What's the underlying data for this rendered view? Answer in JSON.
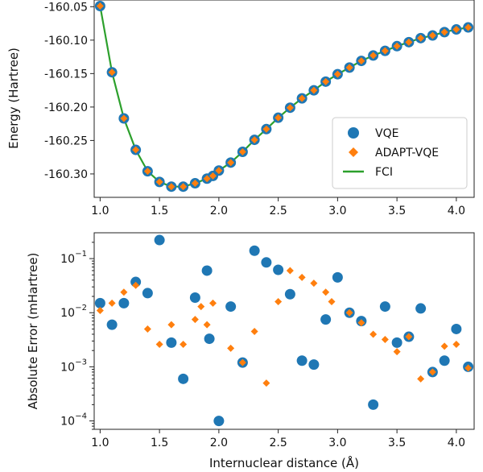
{
  "chart_data": [
    {
      "type": "line",
      "title": "",
      "xlabel": "",
      "ylabel": "Energy (Hartree)",
      "xlim": [
        0.95,
        4.15
      ],
      "ylim": [
        -160.335,
        -160.04
      ],
      "xticks": [
        "1.0",
        "1.5",
        "2.0",
        "2.5",
        "3.0",
        "3.5",
        "4.0"
      ],
      "yticks": [
        "-160.05",
        "-160.10",
        "-160.15",
        "-160.20",
        "-160.25",
        "-160.30"
      ],
      "xtick_values": [
        1.0,
        1.5,
        2.0,
        2.5,
        3.0,
        3.5,
        4.0
      ],
      "ytick_values": [
        -160.05,
        -160.1,
        -160.15,
        -160.2,
        -160.25,
        -160.3
      ],
      "legend_position": "lower-right",
      "x": [
        1.0,
        1.1,
        1.2,
        1.3,
        1.4,
        1.5,
        1.6,
        1.7,
        1.8,
        1.9,
        1.95,
        2.0,
        2.1,
        2.2,
        2.3,
        2.4,
        2.5,
        2.6,
        2.7,
        2.8,
        2.9,
        3.0,
        3.1,
        3.2,
        3.3,
        3.4,
        3.5,
        3.6,
        3.7,
        3.8,
        3.9,
        4.0,
        4.1
      ],
      "series": [
        {
          "name": "VQE",
          "marker": "circle",
          "color": "#1f77b4",
          "values": [
            -160.049,
            -160.148,
            -160.217,
            -160.264,
            -160.296,
            -160.312,
            -160.319,
            -160.319,
            -160.314,
            -160.307,
            -160.303,
            -160.295,
            -160.283,
            -160.267,
            -160.249,
            -160.233,
            -160.216,
            -160.201,
            -160.187,
            -160.175,
            -160.162,
            -160.151,
            -160.141,
            -160.131,
            -160.123,
            -160.116,
            -160.109,
            -160.103,
            -160.097,
            -160.093,
            -160.088,
            -160.084,
            -160.081
          ]
        },
        {
          "name": "ADAPT-VQE",
          "marker": "diamond",
          "color": "#ff7f0e",
          "values": [
            -160.049,
            -160.148,
            -160.217,
            -160.264,
            -160.296,
            -160.312,
            -160.319,
            -160.319,
            -160.314,
            -160.307,
            -160.303,
            -160.295,
            -160.283,
            -160.267,
            -160.249,
            -160.233,
            -160.216,
            -160.201,
            -160.187,
            -160.175,
            -160.162,
            -160.151,
            -160.141,
            -160.131,
            -160.123,
            -160.116,
            -160.109,
            -160.103,
            -160.097,
            -160.093,
            -160.088,
            -160.084,
            -160.081
          ]
        },
        {
          "name": "FCI",
          "marker": "line",
          "color": "#2ca02c",
          "values": [
            -160.049,
            -160.148,
            -160.217,
            -160.264,
            -160.296,
            -160.312,
            -160.319,
            -160.319,
            -160.314,
            -160.307,
            -160.303,
            -160.295,
            -160.283,
            -160.267,
            -160.249,
            -160.233,
            -160.216,
            -160.201,
            -160.187,
            -160.175,
            -160.162,
            -160.151,
            -160.141,
            -160.131,
            -160.123,
            -160.116,
            -160.109,
            -160.103,
            -160.097,
            -160.093,
            -160.088,
            -160.084,
            -160.081
          ]
        }
      ]
    },
    {
      "type": "scatter",
      "title": "",
      "xlabel": "Internuclear distance (Å)",
      "ylabel": "Absolute Error (mHartree)",
      "log_y": true,
      "xlim": [
        0.95,
        4.15
      ],
      "ylim": [
        7e-05,
        0.3
      ],
      "xticks": [
        "1.0",
        "1.5",
        "2.0",
        "2.5",
        "3.0",
        "3.5",
        "4.0"
      ],
      "xtick_values": [
        1.0,
        1.5,
        2.0,
        2.5,
        3.0,
        3.5,
        4.0
      ],
      "yticks": [
        {
          "base": "10",
          "exp": "−1",
          "value": 0.1
        },
        {
          "base": "10",
          "exp": "−2",
          "value": 0.01
        },
        {
          "base": "10",
          "exp": "−3",
          "value": 0.001
        },
        {
          "base": "10",
          "exp": "−4",
          "value": 0.0001
        }
      ],
      "series": [
        {
          "name": "VQE",
          "marker": "circle",
          "color": "#1f77b4",
          "points": [
            [
              1.0,
              0.015
            ],
            [
              1.1,
              0.006
            ],
            [
              1.2,
              0.015
            ],
            [
              1.3,
              0.037
            ],
            [
              1.4,
              0.023
            ],
            [
              1.5,
              0.22
            ],
            [
              1.6,
              0.0028
            ],
            [
              1.7,
              0.0006
            ],
            [
              1.8,
              0.019
            ],
            [
              1.9,
              0.06
            ],
            [
              1.92,
              0.0033
            ],
            [
              2.0,
              0.0001
            ],
            [
              2.1,
              0.013
            ],
            [
              2.2,
              0.0012
            ],
            [
              2.3,
              0.14
            ],
            [
              2.4,
              0.085
            ],
            [
              2.5,
              0.062
            ],
            [
              2.6,
              0.022
            ],
            [
              2.7,
              0.0013
            ],
            [
              2.8,
              0.0011
            ],
            [
              2.9,
              0.0075
            ],
            [
              3.0,
              0.045
            ],
            [
              3.1,
              0.01
            ],
            [
              3.2,
              0.007
            ],
            [
              3.3,
              0.0002
            ],
            [
              3.4,
              0.013
            ],
            [
              3.5,
              0.0028
            ],
            [
              3.6,
              0.0036
            ],
            [
              3.7,
              0.012
            ],
            [
              3.8,
              0.0008
            ],
            [
              3.9,
              0.0013
            ],
            [
              4.0,
              0.005
            ],
            [
              4.1,
              0.001
            ]
          ]
        },
        {
          "name": "ADAPT-VQE",
          "marker": "diamond",
          "color": "#ff7f0e",
          "points": [
            [
              1.0,
              0.011
            ],
            [
              1.1,
              0.015
            ],
            [
              1.2,
              0.024
            ],
            [
              1.3,
              0.032
            ],
            [
              1.4,
              0.005
            ],
            [
              1.5,
              0.0026
            ],
            [
              1.6,
              0.006
            ],
            [
              1.7,
              0.0026
            ],
            [
              1.8,
              0.0075
            ],
            [
              1.85,
              0.013
            ],
            [
              1.9,
              0.006
            ],
            [
              1.95,
              0.015
            ],
            [
              2.1,
              0.0022
            ],
            [
              2.2,
              0.0012
            ],
            [
              2.3,
              0.0045
            ],
            [
              2.4,
              0.0005
            ],
            [
              2.5,
              0.016
            ],
            [
              2.6,
              0.06
            ],
            [
              2.7,
              0.045
            ],
            [
              2.8,
              0.035
            ],
            [
              2.9,
              0.024
            ],
            [
              2.95,
              0.016
            ],
            [
              3.1,
              0.01
            ],
            [
              3.2,
              0.0065
            ],
            [
              3.3,
              0.004
            ],
            [
              3.4,
              0.0032
            ],
            [
              3.5,
              0.0019
            ],
            [
              3.6,
              0.0036
            ],
            [
              3.7,
              0.0006
            ],
            [
              3.8,
              0.0008
            ],
            [
              3.9,
              0.0024
            ],
            [
              4.0,
              0.0026
            ],
            [
              4.1,
              0.00095
            ]
          ]
        }
      ]
    }
  ]
}
